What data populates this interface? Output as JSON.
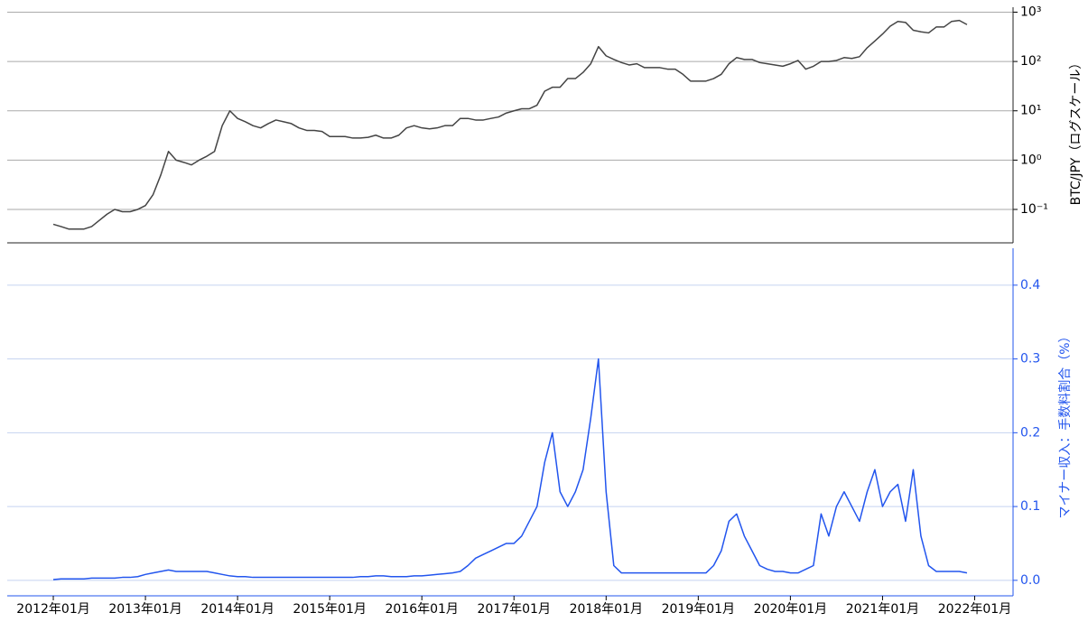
{
  "chart_data": [
    {
      "type": "line",
      "ylabel": "BTC/JPY（ログスケール）",
      "log_scale": true,
      "grid": true,
      "xlim": [
        "2011-07",
        "2022-06"
      ],
      "ylim": [
        0.021,
        1260
      ],
      "yticks": [
        {
          "value": 0.1,
          "label": "10⁻¹"
        },
        {
          "value": 1,
          "label": "10⁰"
        },
        {
          "value": 10,
          "label": "10¹"
        },
        {
          "value": 100,
          "label": "10²"
        },
        {
          "value": 1000,
          "label": "10³"
        }
      ],
      "x": [
        "2012-01",
        "2012-02",
        "2012-03",
        "2012-04",
        "2012-05",
        "2012-06",
        "2012-07",
        "2012-08",
        "2012-09",
        "2012-10",
        "2012-11",
        "2012-12",
        "2013-01",
        "2013-02",
        "2013-03",
        "2013-04",
        "2013-05",
        "2013-06",
        "2013-07",
        "2013-08",
        "2013-09",
        "2013-10",
        "2013-11",
        "2013-12",
        "2014-01",
        "2014-02",
        "2014-03",
        "2014-04",
        "2014-05",
        "2014-06",
        "2014-07",
        "2014-08",
        "2014-09",
        "2014-10",
        "2014-11",
        "2014-12",
        "2015-01",
        "2015-02",
        "2015-03",
        "2015-04",
        "2015-05",
        "2015-06",
        "2015-07",
        "2015-08",
        "2015-09",
        "2015-10",
        "2015-11",
        "2015-12",
        "2016-01",
        "2016-02",
        "2016-03",
        "2016-04",
        "2016-05",
        "2016-06",
        "2016-07",
        "2016-08",
        "2016-09",
        "2016-10",
        "2016-11",
        "2016-12",
        "2017-01",
        "2017-02",
        "2017-03",
        "2017-04",
        "2017-05",
        "2017-06",
        "2017-07",
        "2017-08",
        "2017-09",
        "2017-10",
        "2017-11",
        "2017-12",
        "2018-01",
        "2018-02",
        "2018-03",
        "2018-04",
        "2018-05",
        "2018-06",
        "2018-07",
        "2018-08",
        "2018-09",
        "2018-10",
        "2018-11",
        "2018-12",
        "2019-01",
        "2019-02",
        "2019-03",
        "2019-04",
        "2019-05",
        "2019-06",
        "2019-07",
        "2019-08",
        "2019-09",
        "2019-10",
        "2019-11",
        "2019-12",
        "2020-01",
        "2020-02",
        "2020-03",
        "2020-04",
        "2020-05",
        "2020-06",
        "2020-07",
        "2020-08",
        "2020-09",
        "2020-10",
        "2020-11",
        "2020-12",
        "2021-01",
        "2021-02",
        "2021-03",
        "2021-04",
        "2021-05",
        "2021-06",
        "2021-07",
        "2021-08",
        "2021-09",
        "2021-10",
        "2021-11",
        "2021-12"
      ],
      "series": [
        {
          "name": "BTC/JPY",
          "color": "#444444",
          "values": [
            0.05,
            0.045,
            0.04,
            0.04,
            0.04,
            0.045,
            0.06,
            0.08,
            0.1,
            0.09,
            0.09,
            0.1,
            0.12,
            0.2,
            0.5,
            1.5,
            1.0,
            0.9,
            0.8,
            1.0,
            1.2,
            1.5,
            5,
            10,
            7,
            6,
            5,
            4.5,
            5.5,
            6.5,
            6,
            5.5,
            4.5,
            4,
            4,
            3.8,
            3,
            3,
            3,
            2.8,
            2.8,
            2.9,
            3.2,
            2.8,
            2.8,
            3.2,
            4.5,
            5,
            4.5,
            4.3,
            4.5,
            5,
            5,
            7,
            7,
            6.5,
            6.5,
            7,
            7.5,
            9,
            10,
            11,
            11,
            13,
            25,
            30,
            30,
            45,
            45,
            60,
            90,
            200,
            130,
            110,
            95,
            85,
            90,
            75,
            75,
            75,
            70,
            70,
            55,
            40,
            40,
            40,
            45,
            55,
            90,
            120,
            110,
            110,
            95,
            90,
            85,
            80,
            90,
            105,
            70,
            80,
            100,
            100,
            105,
            120,
            115,
            125,
            190,
            260,
            360,
            520,
            650,
            620,
            430,
            400,
            380,
            500,
            500,
            650,
            680,
            560
          ]
        }
      ]
    },
    {
      "type": "line",
      "ylabel": "マイナー収入：手数料割合（%）",
      "grid": true,
      "xlim": [
        "2011-07",
        "2022-06"
      ],
      "ylim": [
        -0.021,
        0.45
      ],
      "xticks": [
        {
          "value": "2012-01",
          "label": "2012年01月"
        },
        {
          "value": "2013-01",
          "label": "2013年01月"
        },
        {
          "value": "2014-01",
          "label": "2014年01月"
        },
        {
          "value": "2015-01",
          "label": "2015年01月"
        },
        {
          "value": "2016-01",
          "label": "2016年01月"
        },
        {
          "value": "2017-01",
          "label": "2017年01月"
        },
        {
          "value": "2018-01",
          "label": "2018年01月"
        },
        {
          "value": "2019-01",
          "label": "2019年01月"
        },
        {
          "value": "2020-01",
          "label": "2020年01月"
        },
        {
          "value": "2021-01",
          "label": "2021年01月"
        },
        {
          "value": "2022-01",
          "label": "2022年01月"
        }
      ],
      "yticks": [
        {
          "value": 0,
          "label": "0.0"
        },
        0.1,
        0.2,
        0.3,
        0.4
      ],
      "x": [
        "2012-01",
        "2012-02",
        "2012-03",
        "2012-04",
        "2012-05",
        "2012-06",
        "2012-07",
        "2012-08",
        "2012-09",
        "2012-10",
        "2012-11",
        "2012-12",
        "2013-01",
        "2013-02",
        "2013-03",
        "2013-04",
        "2013-05",
        "2013-06",
        "2013-07",
        "2013-08",
        "2013-09",
        "2013-10",
        "2013-11",
        "2013-12",
        "2014-01",
        "2014-02",
        "2014-03",
        "2014-04",
        "2014-05",
        "2014-06",
        "2014-07",
        "2014-08",
        "2014-09",
        "2014-10",
        "2014-11",
        "2014-12",
        "2015-01",
        "2015-02",
        "2015-03",
        "2015-04",
        "2015-05",
        "2015-06",
        "2015-07",
        "2015-08",
        "2015-09",
        "2015-10",
        "2015-11",
        "2015-12",
        "2016-01",
        "2016-02",
        "2016-03",
        "2016-04",
        "2016-05",
        "2016-06",
        "2016-07",
        "2016-08",
        "2016-09",
        "2016-10",
        "2016-11",
        "2016-12",
        "2017-01",
        "2017-02",
        "2017-03",
        "2017-04",
        "2017-05",
        "2017-06",
        "2017-07",
        "2017-08",
        "2017-09",
        "2017-10",
        "2017-11",
        "2017-12",
        "2018-01",
        "2018-02",
        "2018-03",
        "2018-04",
        "2018-05",
        "2018-06",
        "2018-07",
        "2018-08",
        "2018-09",
        "2018-10",
        "2018-11",
        "2018-12",
        "2019-01",
        "2019-02",
        "2019-03",
        "2019-04",
        "2019-05",
        "2019-06",
        "2019-07",
        "2019-08",
        "2019-09",
        "2019-10",
        "2019-11",
        "2019-12",
        "2020-01",
        "2020-02",
        "2020-03",
        "2020-04",
        "2020-05",
        "2020-06",
        "2020-07",
        "2020-08",
        "2020-09",
        "2020-10",
        "2020-11",
        "2020-12",
        "2021-01",
        "2021-02",
        "2021-03",
        "2021-04",
        "2021-05",
        "2021-06",
        "2021-07",
        "2021-08",
        "2021-09",
        "2021-10",
        "2021-11",
        "2021-12"
      ],
      "series": [
        {
          "name": "手数料割合",
          "color": "#2255ee",
          "values": [
            0.001,
            0.002,
            0.002,
            0.002,
            0.002,
            0.003,
            0.003,
            0.003,
            0.003,
            0.004,
            0.004,
            0.005,
            0.008,
            0.01,
            0.012,
            0.014,
            0.012,
            0.012,
            0.012,
            0.012,
            0.012,
            0.01,
            0.008,
            0.006,
            0.005,
            0.005,
            0.004,
            0.004,
            0.004,
            0.004,
            0.004,
            0.004,
            0.004,
            0.004,
            0.004,
            0.004,
            0.004,
            0.004,
            0.004,
            0.004,
            0.005,
            0.005,
            0.006,
            0.006,
            0.005,
            0.005,
            0.005,
            0.006,
            0.006,
            0.007,
            0.008,
            0.009,
            0.01,
            0.012,
            0.02,
            0.03,
            0.035,
            0.04,
            0.045,
            0.05,
            0.05,
            0.06,
            0.08,
            0.1,
            0.16,
            0.2,
            0.12,
            0.1,
            0.12,
            0.15,
            0.22,
            0.3,
            0.12,
            0.02,
            0.01,
            0.01,
            0.01,
            0.01,
            0.01,
            0.01,
            0.01,
            0.01,
            0.01,
            0.01,
            0.01,
            0.01,
            0.02,
            0.04,
            0.08,
            0.09,
            0.06,
            0.04,
            0.02,
            0.015,
            0.012,
            0.012,
            0.01,
            0.01,
            0.015,
            0.02,
            0.09,
            0.06,
            0.1,
            0.12,
            0.1,
            0.08,
            0.12,
            0.15,
            0.1,
            0.12,
            0.13,
            0.08,
            0.15,
            0.06,
            0.02,
            0.012,
            0.012,
            0.012,
            0.012,
            0.01
          ]
        }
      ]
    }
  ]
}
